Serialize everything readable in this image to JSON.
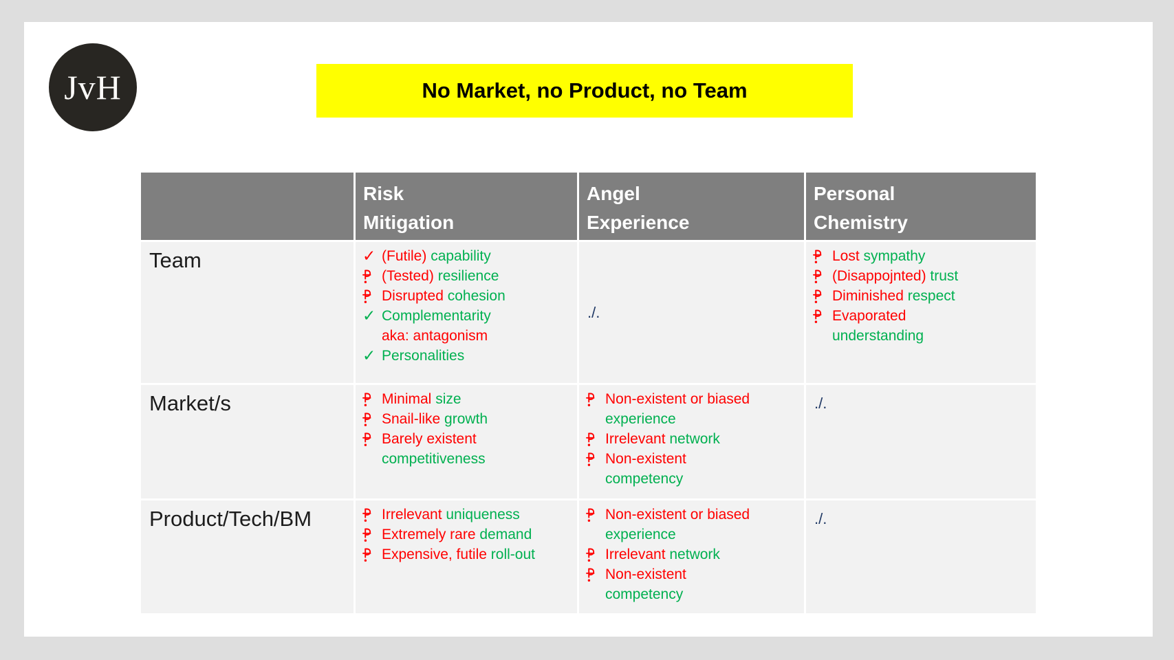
{
  "slide": {
    "logo": {
      "text": "JvH"
    },
    "title": {
      "text": "No Market, no Product, no Team"
    },
    "colors": {
      "red": "#ff0000",
      "green": "#00b050",
      "navy": "#1f3864",
      "yellow": "#ffff00",
      "header_gray": "#7f7f7f",
      "cell_gray": "#f2f2f2",
      "page_gray": "#dedede",
      "card_white": "#ffffff",
      "logo_black": "#282622"
    },
    "table": {
      "header": {
        "columns": [
          "",
          "Risk Mitigation",
          "Angel Experience",
          "Personal Chemistry"
        ]
      },
      "empty_marker": "./.",
      "rows": [
        {
          "label": "Team",
          "cells": [
            {
              "type": "list",
              "items": [
                {
                  "bullet": "check",
                  "bullet_color": "red",
                  "segments": [
                    {
                      "text": "(Futile) ",
                      "color": "red"
                    },
                    {
                      "text": "capability",
                      "color": "green"
                    }
                  ]
                },
                {
                  "bullet": "pstroke",
                  "bullet_color": "red",
                  "segments": [
                    {
                      "text": "(Tested) ",
                      "color": "red"
                    },
                    {
                      "text": "resilience",
                      "color": "green"
                    }
                  ]
                },
                {
                  "bullet": "pstroke",
                  "bullet_color": "red",
                  "segments": [
                    {
                      "text": "Disrupted ",
                      "color": "red"
                    },
                    {
                      "text": "cohesion",
                      "color": "green"
                    }
                  ]
                },
                {
                  "bullet": "check",
                  "bullet_color": "green",
                  "segments": [
                    {
                      "text": "Complementarity",
                      "color": "green"
                    },
                    {
                      "text": "aka: antagonism",
                      "color": "red",
                      "newline": true
                    }
                  ]
                },
                {
                  "bullet": "check",
                  "bullet_color": "green",
                  "segments": [
                    {
                      "text": "Personalities",
                      "color": "green"
                    }
                  ]
                }
              ]
            },
            {
              "type": "slash",
              "text": "./.",
              "valign": "middle"
            },
            {
              "type": "list",
              "items": [
                {
                  "bullet": "pstroke",
                  "bullet_color": "red",
                  "segments": [
                    {
                      "text": "Lost ",
                      "color": "red"
                    },
                    {
                      "text": "sympathy",
                      "color": "green"
                    }
                  ]
                },
                {
                  "bullet": "pstroke",
                  "bullet_color": "red",
                  "segments": [
                    {
                      "text": "(Disappojnted) ",
                      "color": "red"
                    },
                    {
                      "text": "trust",
                      "color": "green"
                    }
                  ]
                },
                {
                  "bullet": "pstroke",
                  "bullet_color": "red",
                  "segments": [
                    {
                      "text": "Diminished ",
                      "color": "red"
                    },
                    {
                      "text": "respect",
                      "color": "green"
                    }
                  ]
                },
                {
                  "bullet": "pstroke",
                  "bullet_color": "red",
                  "segments": [
                    {
                      "text": "Evaporated",
                      "color": "red"
                    },
                    {
                      "text": "understanding",
                      "color": "green",
                      "newline": true
                    }
                  ]
                }
              ]
            }
          ]
        },
        {
          "label": "Market/s",
          "cells": [
            {
              "type": "list",
              "items": [
                {
                  "bullet": "pstroke",
                  "bullet_color": "red",
                  "segments": [
                    {
                      "text": "Minimal ",
                      "color": "red"
                    },
                    {
                      "text": "size",
                      "color": "green"
                    }
                  ]
                },
                {
                  "bullet": "pstroke",
                  "bullet_color": "red",
                  "segments": [
                    {
                      "text": "Snail-like ",
                      "color": "red"
                    },
                    {
                      "text": "growth",
                      "color": "green"
                    }
                  ]
                },
                {
                  "bullet": "pstroke",
                  "bullet_color": "red",
                  "segments": [
                    {
                      "text": "Barely existent",
                      "color": "red"
                    },
                    {
                      "text": "competitiveness",
                      "color": "green",
                      "newline": true
                    }
                  ]
                }
              ]
            },
            {
              "type": "list",
              "items": [
                {
                  "bullet": "pstroke",
                  "bullet_color": "red",
                  "segments": [
                    {
                      "text": "Non-existent or biased",
                      "color": "red"
                    },
                    {
                      "text": "experience",
                      "color": "green",
                      "newline": true
                    }
                  ]
                },
                {
                  "bullet": "pstroke",
                  "bullet_color": "red",
                  "segments": [
                    {
                      "text": "Irrelevant ",
                      "color": "red"
                    },
                    {
                      "text": "network",
                      "color": "green"
                    }
                  ]
                },
                {
                  "bullet": "pstroke",
                  "bullet_color": "red",
                  "segments": [
                    {
                      "text": "Non-existent",
                      "color": "red"
                    },
                    {
                      "text": "competency",
                      "color": "green",
                      "newline": true
                    }
                  ]
                }
              ]
            },
            {
              "type": "slash",
              "text": "./.",
              "valign": "top"
            }
          ]
        },
        {
          "label": "Product/Tech/BM",
          "cells": [
            {
              "type": "list",
              "items": [
                {
                  "bullet": "pstroke",
                  "bullet_color": "red",
                  "segments": [
                    {
                      "text": "Irrelevant ",
                      "color": "red"
                    },
                    {
                      "text": "uniqueness",
                      "color": "green"
                    }
                  ]
                },
                {
                  "bullet": "pstroke",
                  "bullet_color": "red",
                  "segments": [
                    {
                      "text": "Extremely rare ",
                      "color": "red"
                    },
                    {
                      "text": "demand",
                      "color": "green"
                    }
                  ]
                },
                {
                  "bullet": "pstroke",
                  "bullet_color": "red",
                  "segments": [
                    {
                      "text": "Expensive, futile ",
                      "color": "red"
                    },
                    {
                      "text": "roll-out",
                      "color": "green"
                    }
                  ]
                }
              ]
            },
            {
              "type": "list",
              "items": [
                {
                  "bullet": "pstroke",
                  "bullet_color": "red",
                  "segments": [
                    {
                      "text": "Non-existent or biased",
                      "color": "red"
                    },
                    {
                      "text": "experience",
                      "color": "green",
                      "newline": true
                    }
                  ]
                },
                {
                  "bullet": "pstroke",
                  "bullet_color": "red",
                  "segments": [
                    {
                      "text": "Irrelevant ",
                      "color": "red"
                    },
                    {
                      "text": "network",
                      "color": "green"
                    }
                  ]
                },
                {
                  "bullet": "pstroke",
                  "bullet_color": "red",
                  "segments": [
                    {
                      "text": "Non-existent",
                      "color": "red"
                    },
                    {
                      "text": "competency",
                      "color": "green",
                      "newline": true
                    }
                  ]
                }
              ]
            },
            {
              "type": "slash",
              "text": "./.",
              "valign": "top"
            }
          ]
        }
      ]
    }
  }
}
